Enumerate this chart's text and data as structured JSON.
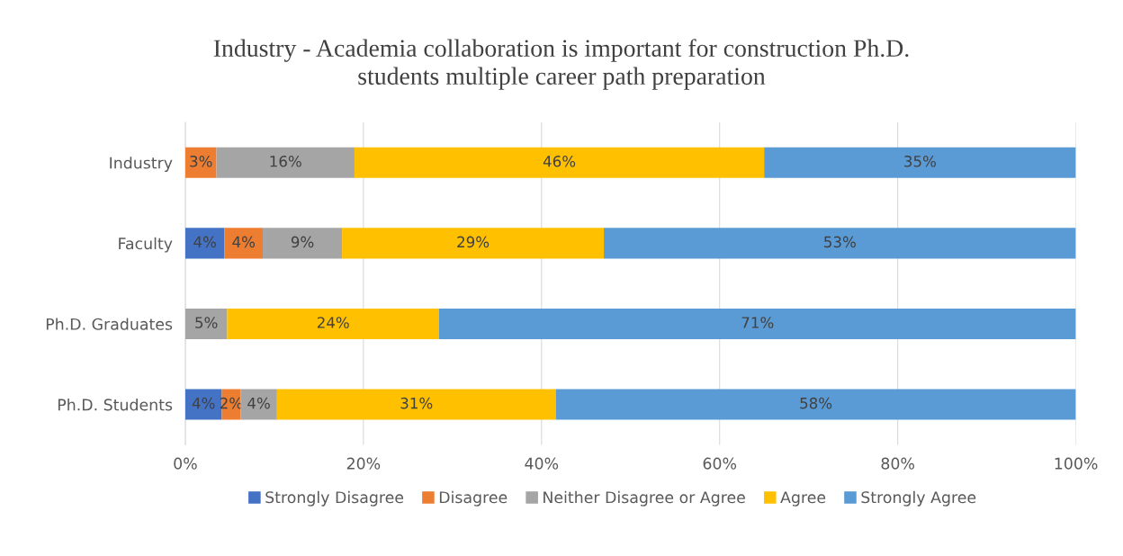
{
  "chart_data": {
    "type": "bar",
    "orientation": "horizontal",
    "stacked": true,
    "title": "Industry - Academia collaboration is important for construction Ph.D.\nstudents multiple career path preparation",
    "categories": [
      "Industry",
      "Faculty",
      "Ph.D. Graduates",
      "Ph.D. Students"
    ],
    "series": [
      {
        "name": "Strongly Disagree",
        "color": "#4472c4",
        "values": [
          0,
          4.4,
          0,
          4.1
        ],
        "value_labels": [
          null,
          "4%",
          null,
          "4%"
        ]
      },
      {
        "name": "Disagree",
        "color": "#ed7d31",
        "values": [
          3.5,
          4.3,
          0,
          2.1
        ],
        "value_labels": [
          "3%",
          "4%",
          null,
          "2%"
        ]
      },
      {
        "name": "Neither Disagree or Agree",
        "color": "#a5a5a5",
        "values": [
          15.5,
          8.9,
          4.7,
          4.1
        ],
        "value_labels": [
          "16%",
          "9%",
          "5%",
          "4%"
        ]
      },
      {
        "name": "Agree",
        "color": "#ffc000",
        "values": [
          46,
          29.4,
          23.8,
          31.3
        ],
        "value_labels": [
          "46%",
          "29%",
          "24%",
          "31%"
        ]
      },
      {
        "name": "Strongly Agree",
        "color": "#5b9bd5",
        "values": [
          35,
          53,
          71.5,
          58.4
        ],
        "value_labels": [
          "35%",
          "53%",
          "71%",
          "58%"
        ]
      }
    ],
    "xlim": [
      0,
      100
    ],
    "xticks": [
      {
        "value": 0,
        "label": "0%"
      },
      {
        "value": 20,
        "label": "20%"
      },
      {
        "value": 40,
        "label": "40%"
      },
      {
        "value": 60,
        "label": "60%"
      },
      {
        "value": 80,
        "label": "80%"
      },
      {
        "value": 100,
        "label": "100%"
      }
    ],
    "grid": "x",
    "legend": "bottom"
  }
}
